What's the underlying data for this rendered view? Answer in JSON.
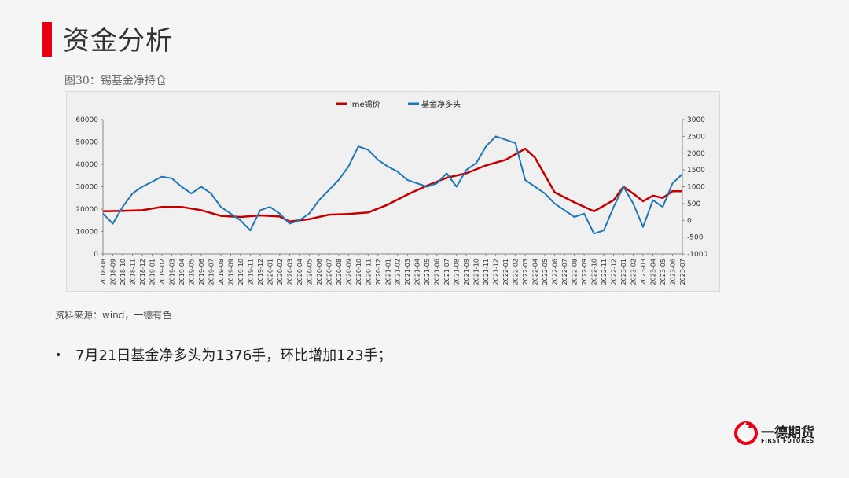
{
  "page": {
    "title": "资金分析",
    "caption": "图30：锡基金净持仓",
    "source": "资料来源：wind，一德有色",
    "bullet_symbol": "•",
    "bullet": "7月21日基金净多头为1376手，环比增加123手；"
  },
  "logo": {
    "name_cn": "一德期货",
    "name_en": "FIRST FUTURES"
  },
  "colors": {
    "lme": "#c00000",
    "fund": "#1f77b4",
    "accent": "#e60012"
  },
  "chart_data": {
    "type": "line",
    "title": "",
    "legend_position": "top-center",
    "series": [
      {
        "name": "lme锡价",
        "axis": "left",
        "points": [
          [
            "2018-08",
            19000
          ],
          [
            "2018-10",
            19200
          ],
          [
            "2018-12",
            19500
          ],
          [
            "2019-02",
            21000
          ],
          [
            "2019-04",
            21000
          ],
          [
            "2019-06",
            19500
          ],
          [
            "2019-08",
            17000
          ],
          [
            "2019-10",
            16500
          ],
          [
            "2019-12",
            17200
          ],
          [
            "2020-02",
            16700
          ],
          [
            "2020-03",
            14500
          ],
          [
            "2020-05",
            15500
          ],
          [
            "2020-07",
            17500
          ],
          [
            "2020-09",
            17800
          ],
          [
            "2020-11",
            18500
          ],
          [
            "2021-01",
            22000
          ],
          [
            "2021-03",
            26500
          ],
          [
            "2021-05",
            30500
          ],
          [
            "2021-07",
            34000
          ],
          [
            "2021-09",
            36000
          ],
          [
            "2021-11",
            39500
          ],
          [
            "2022-01",
            42000
          ],
          [
            "2022-03",
            47000
          ],
          [
            "2022-04",
            43000
          ],
          [
            "2022-06",
            27500
          ],
          [
            "2022-08",
            23000
          ],
          [
            "2022-10",
            19000
          ],
          [
            "2022-12",
            24000
          ],
          [
            "2023-01",
            30000
          ],
          [
            "2023-02",
            27000
          ],
          [
            "2023-03",
            23500
          ],
          [
            "2023-04",
            26000
          ],
          [
            "2023-05",
            25000
          ],
          [
            "2023-06",
            28000
          ],
          [
            "2023-07",
            28000
          ]
        ]
      },
      {
        "name": "基金净多头",
        "axis": "right",
        "points": [
          [
            "2018-08",
            200
          ],
          [
            "2018-09",
            -100
          ],
          [
            "2018-10",
            400
          ],
          [
            "2018-11",
            800
          ],
          [
            "2018-12",
            1000
          ],
          [
            "2019-01",
            1150
          ],
          [
            "2019-02",
            1300
          ],
          [
            "2019-03",
            1250
          ],
          [
            "2019-04",
            1000
          ],
          [
            "2019-05",
            800
          ],
          [
            "2019-06",
            1000
          ],
          [
            "2019-07",
            800
          ],
          [
            "2019-08",
            400
          ],
          [
            "2019-09",
            200
          ],
          [
            "2019-10",
            0
          ],
          [
            "2019-11",
            -300
          ],
          [
            "2019-12",
            300
          ],
          [
            "2020-01",
            400
          ],
          [
            "2020-02",
            200
          ],
          [
            "2020-03",
            -100
          ],
          [
            "2020-04",
            0
          ],
          [
            "2020-05",
            200
          ],
          [
            "2020-06",
            600
          ],
          [
            "2020-07",
            900
          ],
          [
            "2020-08",
            1200
          ],
          [
            "2020-09",
            1600
          ],
          [
            "2020-10",
            2200
          ],
          [
            "2020-11",
            2100
          ],
          [
            "2020-12",
            1800
          ],
          [
            "2021-01",
            1600
          ],
          [
            "2021-02",
            1450
          ],
          [
            "2021-03",
            1200
          ],
          [
            "2021-04",
            1100
          ],
          [
            "2021-05",
            1000
          ],
          [
            "2021-06",
            1100
          ],
          [
            "2021-07",
            1400
          ],
          [
            "2021-08",
            1000
          ],
          [
            "2021-09",
            1500
          ],
          [
            "2021-10",
            1700
          ],
          [
            "2021-11",
            2200
          ],
          [
            "2021-12",
            2500
          ],
          [
            "2022-01",
            2400
          ],
          [
            "2022-02",
            2300
          ],
          [
            "2022-03",
            1200
          ],
          [
            "2022-04",
            1000
          ],
          [
            "2022-05",
            800
          ],
          [
            "2022-06",
            500
          ],
          [
            "2022-07",
            300
          ],
          [
            "2022-08",
            100
          ],
          [
            "2022-09",
            200
          ],
          [
            "2022-10",
            -400
          ],
          [
            "2022-11",
            -300
          ],
          [
            "2022-12",
            400
          ],
          [
            "2023-01",
            1000
          ],
          [
            "2023-02",
            500
          ],
          [
            "2023-03",
            -200
          ],
          [
            "2023-04",
            600
          ],
          [
            "2023-05",
            400
          ],
          [
            "2023-06",
            1100
          ],
          [
            "2023-07",
            1376
          ]
        ]
      }
    ],
    "y_left": {
      "min": 0,
      "max": 60000,
      "ticks": [
        "0",
        "10000",
        "20000",
        "30000",
        "40000",
        "50000",
        "60000"
      ]
    },
    "y_right": {
      "min": -1000,
      "max": 3000,
      "ticks": [
        "-1000",
        "-500",
        "0",
        "500",
        "1000",
        "1500",
        "2000",
        "2500",
        "3000"
      ]
    },
    "x_ticks": [
      "2018-08",
      "2018-09",
      "2018-10",
      "2018-11",
      "2018-12",
      "2019-01",
      "2019-02",
      "2019-03",
      "2019-04",
      "2019-05",
      "2019-06",
      "2019-07",
      "2019-08",
      "2019-09",
      "2019-10",
      "2019-11",
      "2019-12",
      "2020-01",
      "2020-02",
      "2020-03",
      "2020-04",
      "2020-05",
      "2020-06",
      "2020-07",
      "2020-08",
      "2020-09",
      "2020-10",
      "2020-11",
      "2020-12",
      "2021-01",
      "2021-02",
      "2021-03",
      "2021-04",
      "2021-05",
      "2021-06",
      "2021-07",
      "2021-08",
      "2021-09",
      "2021-10",
      "2021-11",
      "2021-12",
      "2022-01",
      "2022-02",
      "2022-03",
      "2022-04",
      "2022-05",
      "2022-06",
      "2022-07",
      "2022-08",
      "2022-09",
      "2022-10",
      "2022-11",
      "2022-12",
      "2023-01",
      "2023-02",
      "2023-03",
      "2023-04",
      "2023-05",
      "2023-06",
      "2023-07"
    ],
    "x_tick_step": 1,
    "grid": false
  }
}
